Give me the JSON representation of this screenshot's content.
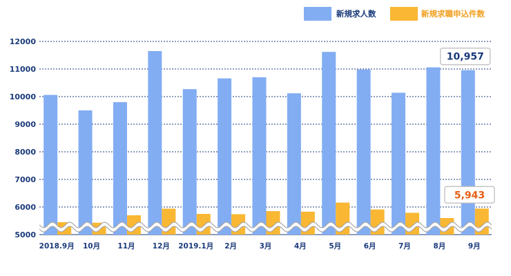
{
  "chart_data": {
    "type": "bar",
    "categories": [
      "2018.9月",
      "10月",
      "11月",
      "12月",
      "2019.1月",
      "2月",
      "3月",
      "4月",
      "5月",
      "6月",
      "7月",
      "8月",
      "9月"
    ],
    "series": [
      {
        "name": "新規求人数",
        "color": "#82adf2",
        "values": [
          10060,
          9500,
          9800,
          11650,
          10270,
          10660,
          10700,
          10120,
          11620,
          10980,
          10140,
          11060,
          10957
        ]
      },
      {
        "name": "新規求職申込件数",
        "color": "#f9b733",
        "values": [
          5450,
          5430,
          5700,
          5940,
          5750,
          5740,
          5850,
          5830,
          6160,
          5910,
          5790,
          5600,
          5943
        ]
      }
    ],
    "y_ticks": [
      "5000",
      "6000",
      "7000",
      "8000",
      "9000",
      "10000",
      "11000",
      "12000"
    ],
    "ylim": [
      5000,
      12000
    ],
    "axis_break": true,
    "grid": true,
    "legend_position": "top-right",
    "callouts": [
      {
        "text": "10,957",
        "series": 0,
        "index": 12,
        "color": "#1a3a7a"
      },
      {
        "text": "5,943",
        "series": 1,
        "index": 12,
        "color": "#e85d14"
      }
    ]
  },
  "colors": {
    "axis_text": "#1a3a7a",
    "grid": "#1a3a7a",
    "legend_text_series1": "#1a3a7a",
    "legend_text_series2": "#f0a020"
  }
}
